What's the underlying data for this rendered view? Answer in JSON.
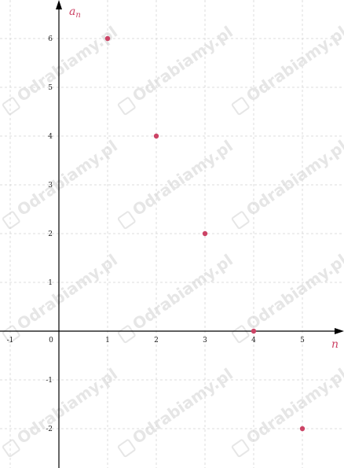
{
  "chart_data": {
    "type": "scatter",
    "title": "",
    "xlabel": "n",
    "ylabel_main": "a",
    "ylabel_sub": "n",
    "xlim": [
      -1,
      5
    ],
    "ylim": [
      -2,
      6
    ],
    "x_ticks": [
      "-1",
      "0",
      "1",
      "2",
      "3",
      "4",
      "5"
    ],
    "y_ticks": [
      "-2",
      "-1",
      "1",
      "2",
      "3",
      "4",
      "5",
      "6"
    ],
    "grid": true,
    "points": [
      {
        "x": 1,
        "y": 6
      },
      {
        "x": 2,
        "y": 4
      },
      {
        "x": 3,
        "y": 2
      },
      {
        "x": 4,
        "y": 0
      },
      {
        "x": 5,
        "y": -2
      }
    ]
  },
  "colors": {
    "point": "#cc4466",
    "axis_label": "#cc4466"
  },
  "watermark": "Odrabiamy.pl"
}
